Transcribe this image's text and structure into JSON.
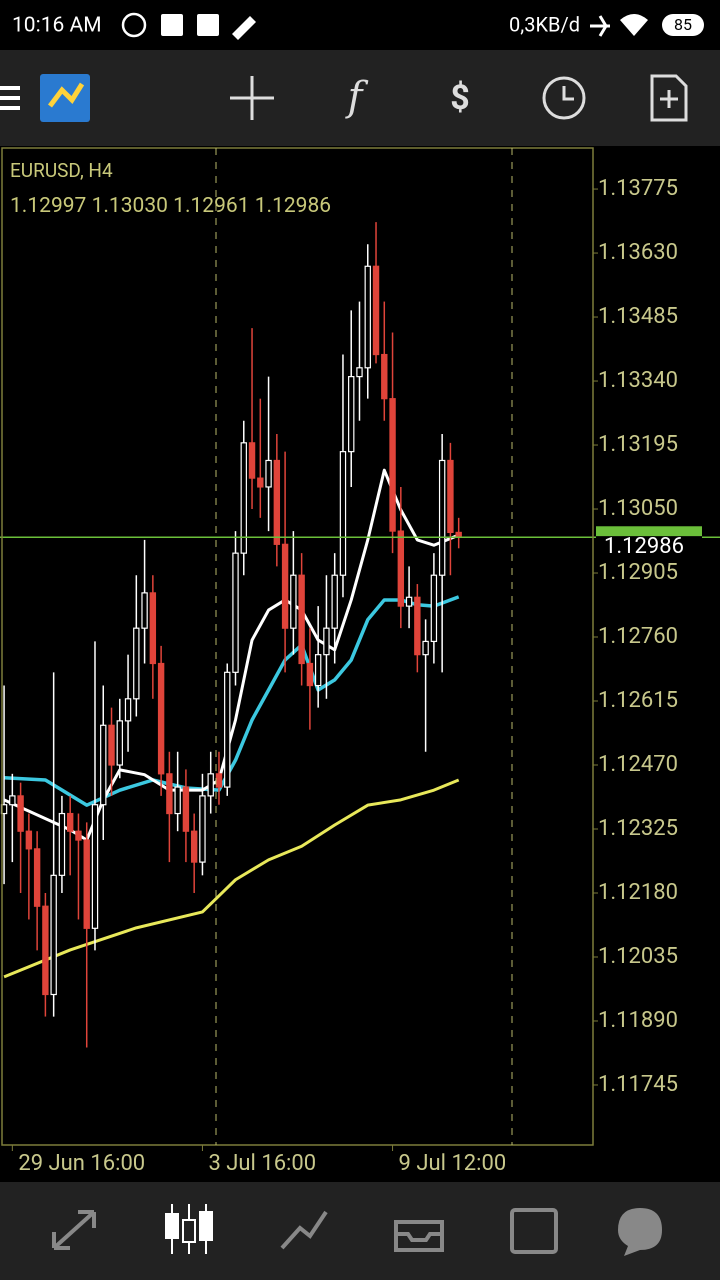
{
  "status_bar": {
    "time": "10:16 AM",
    "network_speed": "0,3KB/d",
    "battery": "85"
  },
  "chart_header": {
    "symbol": "EURUSD, H4",
    "ohlc": [
      "1.12997",
      "1.13030",
      "1.12961",
      "1.12986"
    ]
  },
  "bid_label": "1.12986",
  "chart_data": {
    "type": "candlestick",
    "up_color": "#ffffff",
    "down_color": "#e0443a",
    "ylim": [
      1.11609,
      1.13868
    ],
    "yticks": [
      1.13775,
      {
        "value": 1.1363,
        "label": "1.13630"
      },
      1.13485,
      {
        "value": 1.1334,
        "label": "1.13340"
      },
      1.13195,
      {
        "value": 1.1305,
        "label": "1.13050"
      },
      1.12905,
      {
        "value": 1.1276,
        "label": "1.12760"
      },
      1.12615,
      {
        "value": 1.1247,
        "label": "1.12470"
      },
      1.12325,
      {
        "value": 1.1218,
        "label": "1.12180"
      },
      1.12035,
      {
        "value": 1.1189,
        "label": "1.11890"
      },
      1.11745
    ],
    "xlim": [
      -0.25,
      71.25
    ],
    "xticks": [
      {
        "value": 1,
        "label": "29 Jun 16:00"
      },
      {
        "value": 24,
        "label": "3 Jul 16:00"
      },
      {
        "value": 47,
        "label": "9 Jul 12:00"
      }
    ],
    "current_price": 1.12986,
    "current_price_color": "#6bbf3a",
    "candles": [
      [
        1.1236,
        1.1265,
        1.122,
        1.1238
      ],
      [
        1.1238,
        1.1245,
        1.1225,
        1.124
      ],
      [
        1.124,
        1.1243,
        1.1218,
        1.1232
      ],
      [
        1.1232,
        1.1236,
        1.1212,
        1.1228
      ],
      [
        1.1228,
        1.1232,
        1.1205,
        1.1215
      ],
      [
        1.1215,
        1.1218,
        1.119,
        1.1195
      ],
      [
        1.1195,
        1.1268,
        1.119,
        1.1222
      ],
      [
        1.1222,
        1.124,
        1.1218,
        1.1236
      ],
      [
        1.1236,
        1.124,
        1.1222,
        1.1232
      ],
      [
        1.1232,
        1.1236,
        1.1212,
        1.123
      ],
      [
        1.123,
        1.1234,
        1.1183,
        1.121
      ],
      [
        1.121,
        1.1275,
        1.1205,
        1.1238
      ],
      [
        1.1238,
        1.1265,
        1.123,
        1.1256
      ],
      [
        1.1256,
        1.126,
        1.124,
        1.1247
      ],
      [
        1.1247,
        1.1262,
        1.1244,
        1.1257
      ],
      [
        1.1257,
        1.1272,
        1.125,
        1.1262
      ],
      [
        1.1262,
        1.129,
        1.1258,
        1.1278
      ],
      [
        1.1278,
        1.1298,
        1.127,
        1.1286
      ],
      [
        1.1286,
        1.129,
        1.1262,
        1.127
      ],
      [
        1.127,
        1.1274,
        1.124,
        1.1245
      ],
      [
        1.1245,
        1.125,
        1.1225,
        1.1236
      ],
      [
        1.1236,
        1.125,
        1.1232,
        1.1242
      ],
      [
        1.1242,
        1.1246,
        1.1225,
        1.1232
      ],
      [
        1.1232,
        1.1236,
        1.1218,
        1.1225
      ],
      [
        1.1225,
        1.1245,
        1.1222,
        1.124
      ],
      [
        1.124,
        1.125,
        1.1236,
        1.1245
      ],
      [
        1.1245,
        1.125,
        1.1238,
        1.1242
      ],
      [
        1.1242,
        1.127,
        1.124,
        1.1268
      ],
      [
        1.1268,
        1.13,
        1.1265,
        1.1295
      ],
      [
        1.1295,
        1.1325,
        1.129,
        1.132
      ],
      [
        1.132,
        1.1346,
        1.1305,
        1.1312
      ],
      [
        1.1312,
        1.133,
        1.1303,
        1.131
      ],
      [
        1.131,
        1.1335,
        1.13,
        1.1316
      ],
      [
        1.1316,
        1.1322,
        1.1292,
        1.1297
      ],
      [
        1.1297,
        1.1318,
        1.1268,
        1.1278
      ],
      [
        1.1278,
        1.13,
        1.1272,
        1.129
      ],
      [
        1.129,
        1.1295,
        1.1265,
        1.127
      ],
      [
        1.127,
        1.1278,
        1.1255,
        1.1265
      ],
      [
        1.1265,
        1.1283,
        1.126,
        1.1272
      ],
      [
        1.1272,
        1.129,
        1.1262,
        1.1278
      ],
      [
        1.1278,
        1.1295,
        1.127,
        1.129
      ],
      [
        1.129,
        1.134,
        1.1285,
        1.1318
      ],
      [
        1.1318,
        1.135,
        1.131,
        1.1335
      ],
      [
        1.1335,
        1.1352,
        1.1325,
        1.1337
      ],
      [
        1.1337,
        1.1365,
        1.133,
        1.136
      ],
      [
        1.136,
        1.137,
        1.1338,
        1.134
      ],
      [
        1.134,
        1.1352,
        1.1325,
        1.133
      ],
      [
        1.133,
        1.1345,
        1.1295,
        1.13
      ],
      [
        1.13,
        1.131,
        1.1278,
        1.1283
      ],
      [
        1.1283,
        1.1292,
        1.1278,
        1.1285
      ],
      [
        1.1285,
        1.1288,
        1.1268,
        1.1272
      ],
      [
        1.1272,
        1.128,
        1.125,
        1.1275
      ],
      [
        1.1275,
        1.1295,
        1.127,
        1.129
      ],
      [
        1.129,
        1.1322,
        1.1268,
        1.1316
      ],
      [
        1.1316,
        1.132,
        1.129,
        1.12997
      ],
      [
        1.12997,
        1.1303,
        1.12961,
        1.12986
      ]
    ],
    "indicators": [
      {
        "color": "#e8e85a",
        "width": 3,
        "x": [
          0,
          8,
          16,
          24,
          28,
          32,
          36,
          40,
          44,
          48,
          52,
          55
        ],
        "values": [
          1.1199,
          1.12051,
          1.12101,
          1.12137,
          1.1221,
          1.12255,
          1.12286,
          1.12334,
          1.12379,
          1.12391,
          1.12413,
          1.12436
        ]
      },
      {
        "color": "#3cc8e0",
        "width": 3.5,
        "x": [
          0,
          5,
          10,
          14,
          18,
          22,
          26,
          28,
          30,
          32,
          34,
          36,
          38,
          40,
          42,
          44,
          46,
          48,
          50,
          52,
          55
        ],
        "values": [
          1.12441,
          1.12436,
          1.12379,
          1.12413,
          1.12436,
          1.12418,
          1.12413,
          1.12481,
          1.12572,
          1.1264,
          1.12708,
          1.12742,
          1.1264,
          1.12663,
          1.12708,
          1.12799,
          1.12844,
          1.12844,
          1.12833,
          1.1283,
          1.12851
        ]
      },
      {
        "color": "#ffffff",
        "width": 3,
        "x": [
          0,
          4,
          8,
          10,
          12,
          14,
          17,
          20,
          24,
          26,
          28,
          30,
          32,
          34,
          36,
          38,
          40,
          42,
          44,
          46,
          48,
          50,
          52,
          55
        ],
        "values": [
          1.12391,
          1.12357,
          1.12323,
          1.123,
          1.12391,
          1.12459,
          1.12448,
          1.12413,
          1.12413,
          1.12436,
          1.12572,
          1.12753,
          1.12821,
          1.12844,
          1.12821,
          1.12753,
          1.12731,
          1.12844,
          1.1298,
          1.13138,
          1.13048,
          1.1298,
          1.12968,
          1.12991
        ]
      }
    ]
  }
}
